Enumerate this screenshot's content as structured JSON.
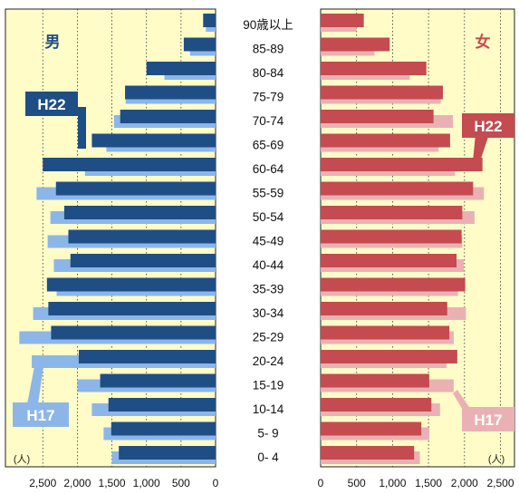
{
  "chart_data": {
    "type": "bar",
    "subtype": "population-pyramid",
    "categories": [
      "0- 4",
      "5- 9",
      "10-14",
      "15-19",
      "20-24",
      "25-29",
      "30-34",
      "35-39",
      "40-44",
      "45-49",
      "50-54",
      "55-59",
      "60-64",
      "65-69",
      "70-74",
      "75-79",
      "80-84",
      "85-89",
      "90歳以上"
    ],
    "male": {
      "label": "男",
      "series": [
        {
          "name": "H22",
          "values": [
            1400,
            1510,
            1550,
            1670,
            1980,
            2380,
            2420,
            2440,
            2100,
            2130,
            2190,
            2310,
            2500,
            1790,
            1380,
            1310,
            1000,
            460,
            180
          ]
        },
        {
          "name": "H17",
          "values": [
            1500,
            1620,
            1790,
            2000,
            2660,
            2840,
            2640,
            2300,
            2340,
            2430,
            2390,
            2590,
            1890,
            1580,
            1470,
            1300,
            740,
            370,
            140
          ]
        }
      ]
    },
    "female": {
      "label": "女",
      "series": [
        {
          "name": "H22",
          "values": [
            1300,
            1400,
            1540,
            1510,
            1900,
            1790,
            1760,
            2010,
            1890,
            1960,
            1970,
            2120,
            2250,
            1800,
            1570,
            1700,
            1470,
            960,
            600
          ]
        },
        {
          "name": "H17",
          "values": [
            1380,
            1510,
            1660,
            1850,
            1750,
            1850,
            2020,
            1910,
            1990,
            1970,
            2140,
            2270,
            1870,
            1640,
            1840,
            1670,
            1240,
            750,
            500
          ]
        }
      ]
    },
    "male_axis": {
      "ticks": [
        "2,500",
        "2,000",
        "1,500",
        "1,000",
        "500",
        "0"
      ],
      "range": [
        0,
        2800
      ]
    },
    "female_axis": {
      "ticks": [
        "0",
        "500",
        "1,000",
        "1,500",
        "2,000",
        "2,500"
      ],
      "range": [
        0,
        2800
      ]
    },
    "unit": "(人)",
    "colors": {
      "male_h22": "#1f4e84",
      "male_h17": "#8db6e8",
      "female_h22": "#c44b4f",
      "female_h17": "#eab1b4",
      "panel_bg": "#fffcc8",
      "male_label": "#1f4e84",
      "female_label": "#c44b4f"
    }
  }
}
